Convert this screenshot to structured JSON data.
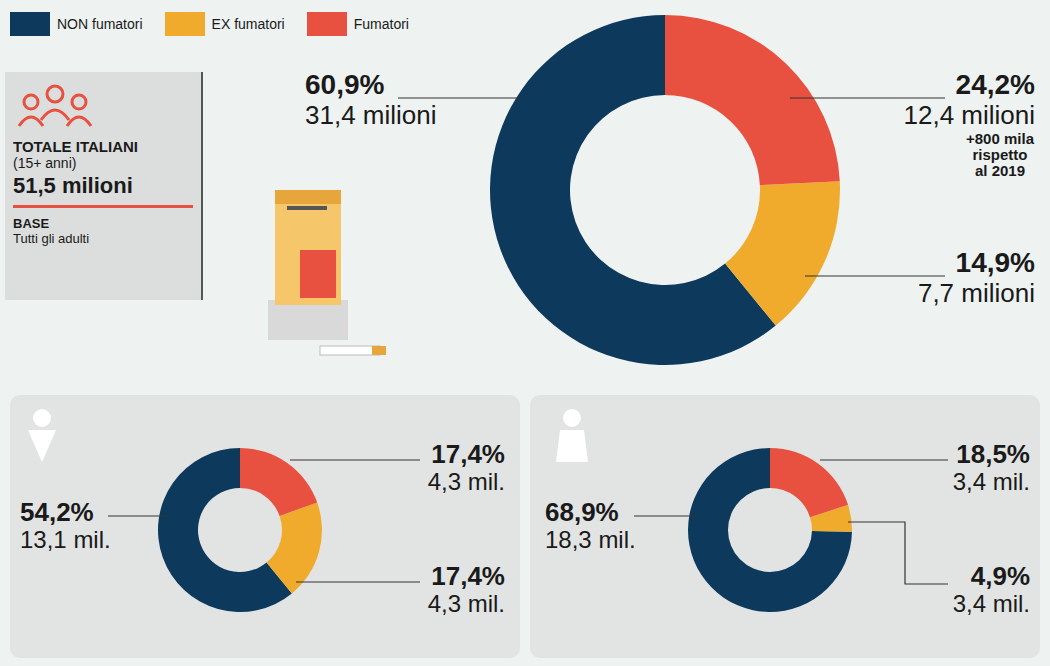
{
  "info": {
    "title": "TOTALE ITALIANI",
    "subtitle": "(15+ anni)",
    "total": "51,5 milioni",
    "base_title": "BASE",
    "base": "Tutti gli adulti"
  },
  "chart_data": [
    {
      "type": "donut",
      "legend": "top-left",
      "data_labels": true,
      "categories": [
        "NON fumatori",
        "EX fumatori",
        "Fumatori"
      ],
      "colors": [
        "#0d3a5c",
        "#f0ab2d",
        "#e8503f"
      ],
      "values": [
        60.9,
        14.9,
        24.2
      ],
      "value_labels": [
        "60,9%",
        "14,9%",
        "24,2%"
      ],
      "count_labels": [
        "31,4 milioni",
        "7,7 milioni",
        "12,4 milioni"
      ],
      "annotation": {
        "category": "Fumatori",
        "text": "+800 mila rispetto al 2019"
      }
    },
    {
      "type": "donut",
      "data_labels": true,
      "categories": [
        "NON fumatori",
        "EX fumatori",
        "Fumatori"
      ],
      "colors": [
        "#0d3a5c",
        "#f0ab2d",
        "#e8503f"
      ],
      "values": [
        54.2,
        17.4,
        17.4
      ],
      "value_labels": [
        "54,2%",
        "17,4%",
        "17,4%"
      ],
      "count_labels": [
        "13,1 mil.",
        "4,3 mil.",
        "4,3 mil."
      ]
    },
    {
      "type": "donut",
      "data_labels": true,
      "categories": [
        "NON fumatori",
        "EX fumatori",
        "Fumatori"
      ],
      "colors": [
        "#0d3a5c",
        "#f0ab2d",
        "#e8503f"
      ],
      "values": [
        68.9,
        4.9,
        18.5
      ],
      "value_labels": [
        "68,9%",
        "4,9%",
        "18,5%"
      ],
      "count_labels": [
        "18,3 mil.",
        "3,4 mil.",
        "3,4 mil."
      ]
    }
  ]
}
